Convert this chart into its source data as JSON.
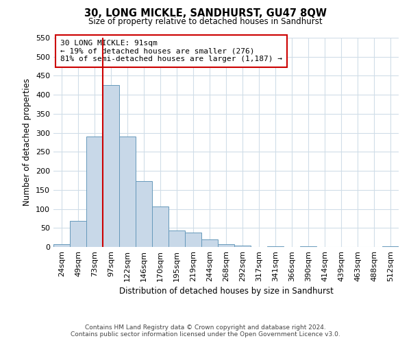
{
  "title": "30, LONG MICKLE, SANDHURST, GU47 8QW",
  "subtitle": "Size of property relative to detached houses in Sandhurst",
  "xlabel": "Distribution of detached houses by size in Sandhurst",
  "ylabel": "Number of detached properties",
  "bar_color": "#c8d8e8",
  "bar_edge_color": "#6699bb",
  "categories": [
    "24sqm",
    "49sqm",
    "73sqm",
    "97sqm",
    "122sqm",
    "146sqm",
    "170sqm",
    "195sqm",
    "219sqm",
    "244sqm",
    "268sqm",
    "292sqm",
    "317sqm",
    "341sqm",
    "366sqm",
    "390sqm",
    "414sqm",
    "439sqm",
    "463sqm",
    "488sqm",
    "512sqm"
  ],
  "values": [
    8,
    68,
    291,
    425,
    291,
    173,
    106,
    43,
    38,
    20,
    7,
    3,
    0,
    1,
    0,
    1,
    0,
    0,
    0,
    0,
    2
  ],
  "ylim": [
    0,
    550
  ],
  "yticks": [
    0,
    50,
    100,
    150,
    200,
    250,
    300,
    350,
    400,
    450,
    500,
    550
  ],
  "property_line_color": "#cc0000",
  "annotation_text_line1": "30 LONG MICKLE: 91sqm",
  "annotation_text_line2": "← 19% of detached houses are smaller (276)",
  "annotation_text_line3": "81% of semi-detached houses are larger (1,187) →",
  "footer_line1": "Contains HM Land Registry data © Crown copyright and database right 2024.",
  "footer_line2": "Contains public sector information licensed under the Open Government Licence v3.0.",
  "bg_color": "#ffffff",
  "grid_color": "#d0dde8"
}
